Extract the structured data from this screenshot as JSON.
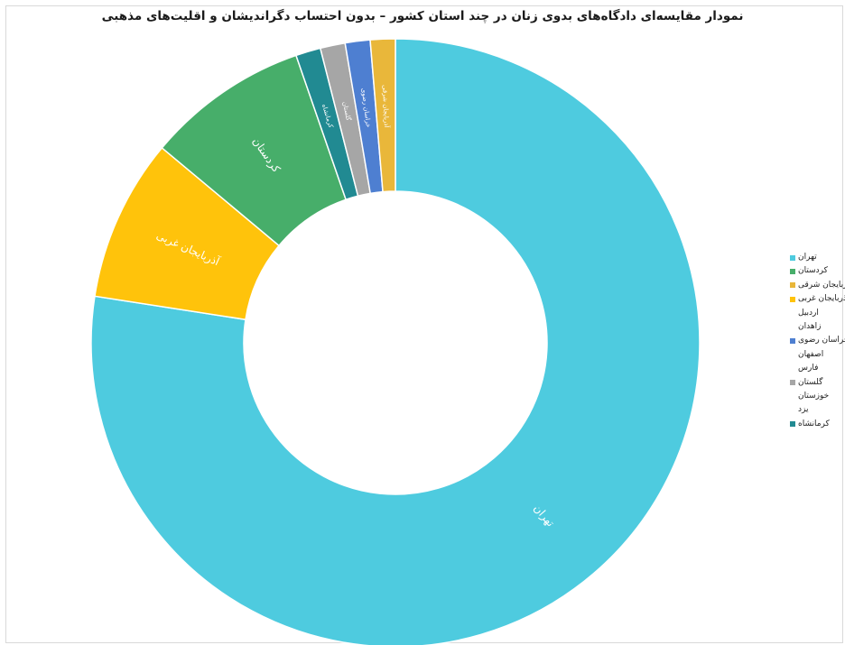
{
  "chart_data": {
    "type": "pie",
    "subtype": "donut",
    "title": "نمودار مقایسه‌ای دادگاه‌های بدوی زنان در چند استان کشور – بدون احتساب دگراندیشان و اقلیت‌های مذهبی",
    "legend_position": "right",
    "slices": [
      {
        "name": "تهران",
        "value": 79.0,
        "color": "#4ecbdf",
        "label": "تهران"
      },
      {
        "name": "آذربایجان غربی",
        "value": 8.8,
        "color": "#ffc30b",
        "label": "آذربایجان غربی"
      },
      {
        "name": "کردستان",
        "value": 8.8,
        "color": "#47ae6a",
        "label": "کردستان"
      },
      {
        "name": "کرمانشاه",
        "value": 1.35,
        "color": "#218a92",
        "label": "کرمانشاه"
      },
      {
        "name": "گلستان",
        "value": 1.35,
        "color": "#a6a6a6",
        "label": "گلستان"
      },
      {
        "name": "خراسان رضوی",
        "value": 1.35,
        "color": "#4e7fd1",
        "label": "خراسان رضوی"
      },
      {
        "name": "آذربایجان شرقی",
        "value": 1.35,
        "color": "#e9b73a",
        "label": "آذربایجان شرقی"
      }
    ],
    "legend": [
      {
        "label": "تهران",
        "color": "#4ecbdf"
      },
      {
        "label": "کردستان",
        "color": "#47ae6a"
      },
      {
        "label": "آذربایجان شرقی",
        "color": "#e9b73a"
      },
      {
        "label": "آذربایجان غربی",
        "color": "#ffc30b"
      },
      {
        "label": "اردبیل",
        "color": ""
      },
      {
        "label": "زاهدان",
        "color": ""
      },
      {
        "label": "خراسان رضوی",
        "color": "#4e7fd1"
      },
      {
        "label": "اصفهان",
        "color": ""
      },
      {
        "label": "فارس",
        "color": ""
      },
      {
        "label": "گلستان",
        "color": "#a6a6a6"
      },
      {
        "label": "خوزستان",
        "color": ""
      },
      {
        "label": "یزد",
        "color": ""
      },
      {
        "label": "کرمانشاه",
        "color": "#218a92"
      }
    ]
  }
}
